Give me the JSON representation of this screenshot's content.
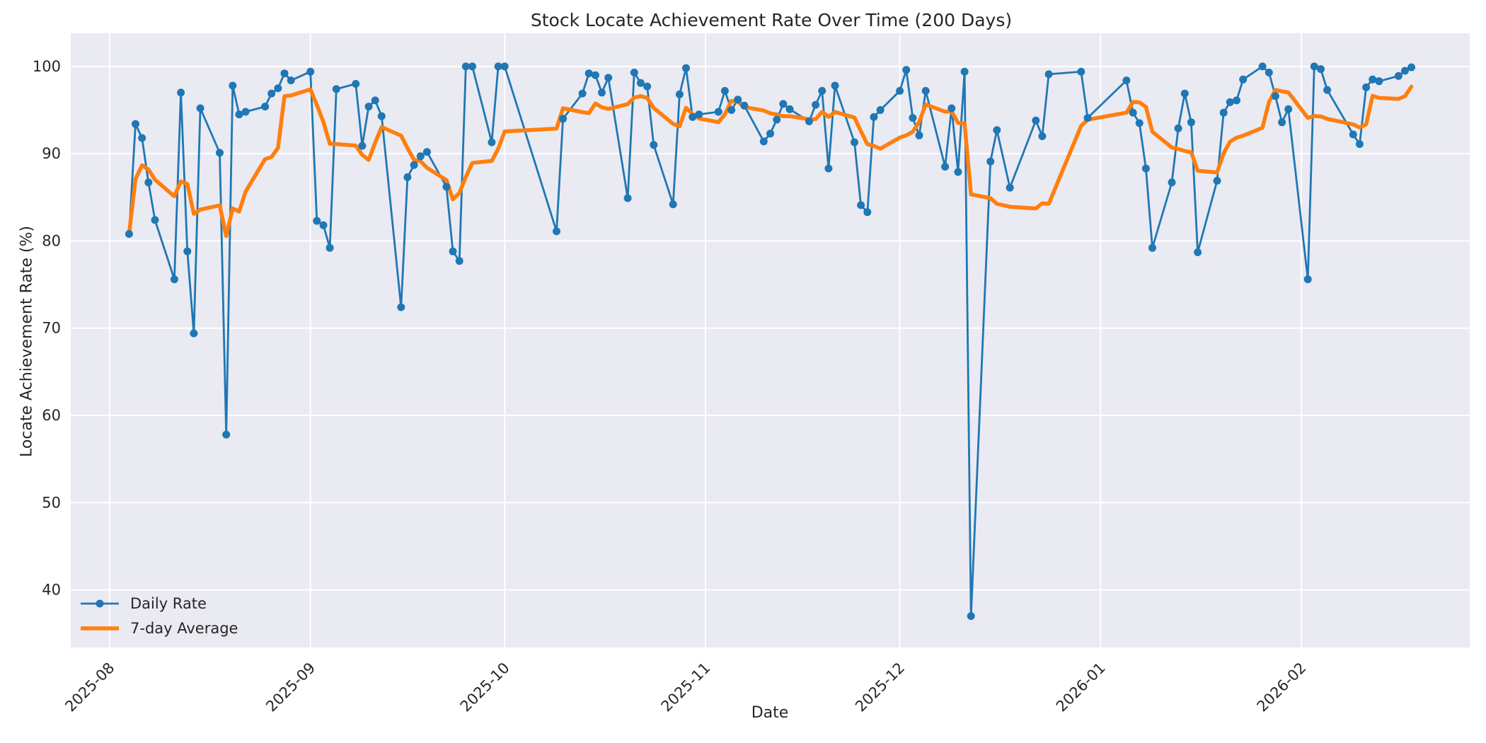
{
  "figure": {
    "background": "#ffffff",
    "plot_background": "#eaeaf2",
    "grid_color": "#ffffff",
    "text_color": "#262626"
  },
  "chart_data": {
    "type": "line",
    "title": "Stock Locate Achievement Rate Over Time (200 Days)",
    "xlabel": "Date",
    "ylabel": "Locate Achievement Rate (%)",
    "grid": true,
    "legend_position": "lower left",
    "ylim": [
      33.4,
      103.8
    ],
    "y_ticks": [
      40,
      50,
      60,
      70,
      80,
      90,
      100
    ],
    "xlim_dates": [
      "2025-07-26",
      "2026-02-27"
    ],
    "x_ticks": [
      {
        "label": "2025-08",
        "date": "2025-08-01"
      },
      {
        "label": "2025-09",
        "date": "2025-09-01"
      },
      {
        "label": "2025-10",
        "date": "2025-10-01"
      },
      {
        "label": "2025-11",
        "date": "2025-11-01"
      },
      {
        "label": "2025-12",
        "date": "2025-12-01"
      },
      {
        "label": "2026-01",
        "date": "2026-01-01"
      },
      {
        "label": "2026-02",
        "date": "2026-02-01"
      }
    ],
    "series": [
      {
        "name": "Daily Rate",
        "color": "#1f77b4",
        "marker": "circle",
        "line_width": 2.8,
        "dates": [
          "2025-08-04",
          "2025-08-05",
          "2025-08-06",
          "2025-08-07",
          "2025-08-08",
          "2025-08-11",
          "2025-08-12",
          "2025-08-13",
          "2025-08-14",
          "2025-08-15",
          "2025-08-18",
          "2025-08-19",
          "2025-08-20",
          "2025-08-21",
          "2025-08-22",
          "2025-08-25",
          "2025-08-26",
          "2025-08-27",
          "2025-08-28",
          "2025-08-29",
          "2025-09-01",
          "2025-09-02",
          "2025-09-03",
          "2025-09-04",
          "2025-09-05",
          "2025-09-08",
          "2025-09-09",
          "2025-09-10",
          "2025-09-11",
          "2025-09-12",
          "2025-09-15",
          "2025-09-16",
          "2025-09-17",
          "2025-09-18",
          "2025-09-19",
          "2025-09-22",
          "2025-09-23",
          "2025-09-24",
          "2025-09-25",
          "2025-09-26",
          "2025-09-29",
          "2025-09-30",
          "2025-10-01",
          "2025-10-09",
          "2025-10-10",
          "2025-10-13",
          "2025-10-14",
          "2025-10-15",
          "2025-10-16",
          "2025-10-17",
          "2025-10-20",
          "2025-10-21",
          "2025-10-22",
          "2025-10-23",
          "2025-10-24",
          "2025-10-27",
          "2025-10-28",
          "2025-10-29",
          "2025-10-30",
          "2025-10-31",
          "2025-11-03",
          "2025-11-04",
          "2025-11-05",
          "2025-11-06",
          "2025-11-07",
          "2025-11-10",
          "2025-11-11",
          "2025-11-12",
          "2025-11-13",
          "2025-11-14",
          "2025-11-17",
          "2025-11-18",
          "2025-11-19",
          "2025-11-20",
          "2025-11-21",
          "2025-11-24",
          "2025-11-25",
          "2025-11-26",
          "2025-11-27",
          "2025-11-28",
          "2025-12-01",
          "2025-12-02",
          "2025-12-03",
          "2025-12-04",
          "2025-12-05",
          "2025-12-08",
          "2025-12-09",
          "2025-12-10",
          "2025-12-11",
          "2025-12-12",
          "2025-12-15",
          "2025-12-16",
          "2025-12-18",
          "2025-12-22",
          "2025-12-23",
          "2025-12-24",
          "2025-12-29",
          "2025-12-30",
          "2026-01-05",
          "2026-01-06",
          "2026-01-07",
          "2026-01-08",
          "2026-01-09",
          "2026-01-12",
          "2026-01-13",
          "2026-01-14",
          "2026-01-15",
          "2026-01-16",
          "2026-01-19",
          "2026-01-20",
          "2026-01-21",
          "2026-01-22",
          "2026-01-23",
          "2026-01-26",
          "2026-01-27",
          "2026-01-28",
          "2026-01-29",
          "2026-01-30",
          "2026-02-02",
          "2026-02-03",
          "2026-02-04",
          "2026-02-05",
          "2026-02-09",
          "2026-02-10",
          "2026-02-11",
          "2026-02-12",
          "2026-02-13",
          "2026-02-16",
          "2026-02-17",
          "2026-02-18"
        ],
        "values": [
          80.8,
          93.4,
          91.8,
          86.7,
          82.4,
          75.6,
          97.0,
          78.8,
          69.4,
          95.2,
          90.1,
          57.8,
          97.8,
          94.5,
          94.8,
          95.4,
          96.9,
          97.5,
          99.2,
          98.4,
          99.4,
          82.3,
          81.8,
          79.2,
          97.4,
          98.0,
          90.9,
          95.4,
          96.1,
          94.3,
          72.4,
          87.3,
          88.7,
          89.7,
          90.2,
          86.2,
          78.8,
          77.7,
          100.0,
          100.0,
          91.3,
          100.0,
          100.0,
          81.1,
          94.0,
          96.9,
          99.2,
          99.0,
          97.0,
          98.7,
          84.9,
          99.3,
          98.1,
          97.7,
          91.0,
          84.2,
          96.8,
          99.8,
          94.2,
          94.5,
          94.8,
          97.2,
          95.0,
          96.2,
          95.5,
          91.4,
          92.3,
          93.9,
          95.7,
          95.1,
          93.7,
          95.6,
          97.2,
          88.3,
          97.8,
          91.3,
          84.1,
          83.3,
          94.2,
          95.0,
          97.2,
          99.6,
          94.1,
          92.1,
          97.2,
          88.5,
          95.2,
          87.9,
          99.4,
          37.0,
          89.1,
          92.7,
          86.1,
          93.8,
          92.0,
          99.1,
          99.4,
          94.1,
          98.4,
          94.7,
          93.5,
          88.3,
          79.2,
          86.7,
          92.9,
          96.9,
          93.6,
          78.7,
          86.9,
          94.7,
          95.9,
          96.1,
          98.5,
          100.0,
          99.3,
          96.6,
          93.6,
          95.1,
          75.6,
          100.0,
          99.7,
          97.3,
          92.2,
          91.1,
          97.6,
          98.5,
          98.3,
          98.9,
          99.5,
          99.9
        ]
      },
      {
        "name": "7-day Average",
        "color": "#ff7f0e",
        "marker": "none",
        "line_width": 5.5,
        "derived_from": "Daily Rate",
        "window": 7
      }
    ]
  }
}
